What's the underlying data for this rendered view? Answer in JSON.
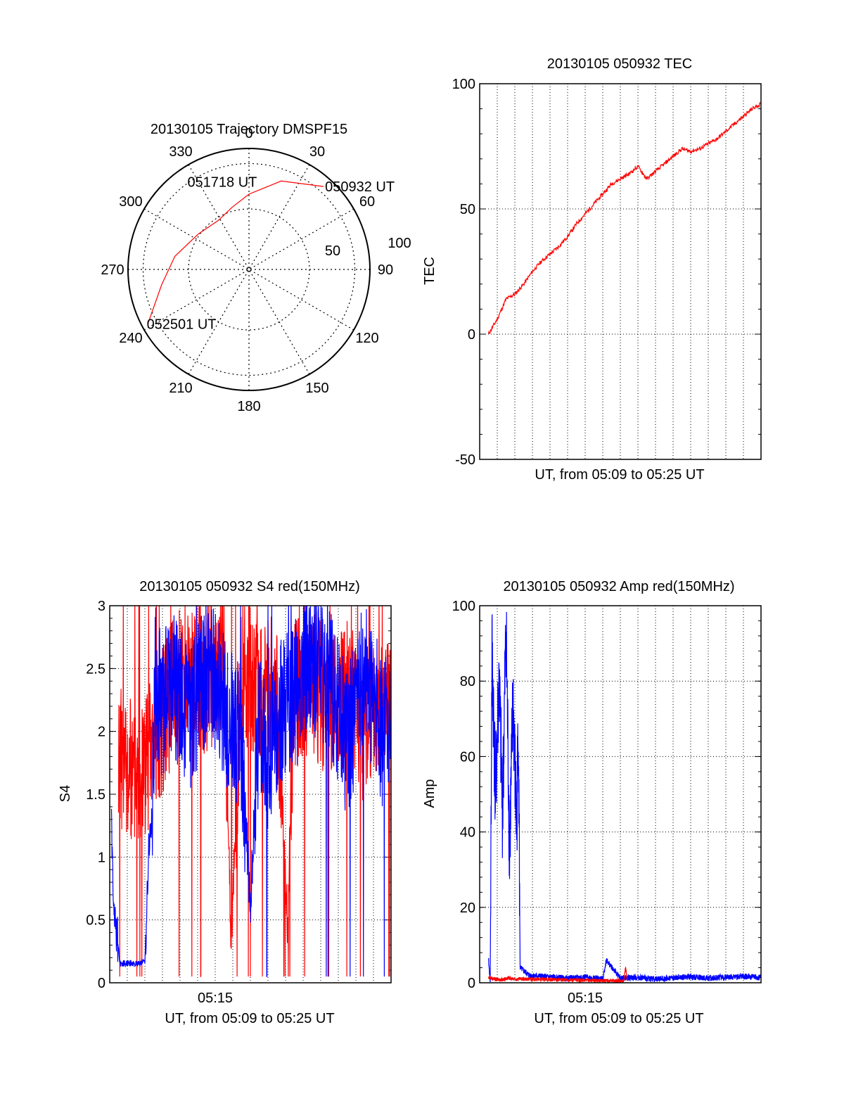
{
  "chart_data": [
    {
      "type": "polar",
      "title": "20130105 Trajectory DMSPF15",
      "azimuth_labels": [
        "0",
        "30",
        "60",
        "90",
        "120",
        "150",
        "180",
        "210",
        "240",
        "270",
        "300",
        "330"
      ],
      "radius_labels": [
        "50",
        "100"
      ],
      "grid": true,
      "trajectory": {
        "color": "#ff0000",
        "points": [
          {
            "az": 42,
            "el": 7,
            "label": "050932 UT"
          },
          {
            "az": 20,
            "el": 20
          },
          {
            "az": 0,
            "el": 34
          },
          {
            "az": -15,
            "el": 42
          },
          {
            "az": -32,
            "el": 47,
            "label": "051718 UT"
          },
          {
            "az": -55,
            "el": 44
          },
          {
            "az": -80,
            "el": 34
          },
          {
            "az": -100,
            "el": 24
          },
          {
            "az": -118,
            "el": 5,
            "label": "052501 UT"
          }
        ]
      }
    },
    {
      "type": "line",
      "title": "20130105 050932 TEC",
      "xlabel": "UT, from 05:09 to 05:25 UT",
      "ylabel": "TEC",
      "ylim": [
        -50,
        100
      ],
      "y_ticks": [
        "-50",
        "0",
        "50",
        "100"
      ],
      "grid": true,
      "series": [
        {
          "color": "#ff0000",
          "x": [
            0.5,
            1,
            1.5,
            2,
            2.5,
            3,
            3.5,
            4,
            4.5,
            5,
            5.5,
            6,
            6.5,
            7,
            7.5,
            8,
            8.5,
            9,
            9.5,
            10,
            10.5,
            11,
            11.5,
            12,
            12.5,
            13,
            13.5,
            14,
            14.5,
            15,
            15.5,
            16
          ],
          "values": [
            0,
            6,
            14,
            16,
            20,
            25,
            29,
            32,
            35,
            39,
            44,
            48,
            52,
            56,
            60,
            62,
            64,
            67,
            62,
            65,
            68,
            71,
            74,
            73,
            74,
            76,
            78,
            81,
            84,
            87,
            90,
            92
          ]
        }
      ]
    },
    {
      "type": "line",
      "title": "20130105 050932 S4 red(150MHz)",
      "xlabel": "UT, from 05:09 to 05:25 UT",
      "ylabel": "S4",
      "ylim": [
        0,
        3
      ],
      "y_ticks": [
        "0",
        "0.5",
        "1",
        "1.5",
        "2",
        "2.5",
        "3"
      ],
      "x_tick_labels": [
        "05:15"
      ],
      "grid": true,
      "series": [
        {
          "color": "#ff0000",
          "x": [
            0.5,
            1.5,
            2.5,
            3.5,
            4.5,
            5.5,
            6.5,
            6.9,
            7.5,
            8.5,
            9.5,
            10.1,
            10.5,
            11.5,
            12.5,
            13.5,
            14.5,
            15.5,
            16
          ],
          "values": [
            1.8,
            1.6,
            1.9,
            2.3,
            2.5,
            2.4,
            2.6,
            0.3,
            2.5,
            2.3,
            2.4,
            0.5,
            2.3,
            2.4,
            2.2,
            2.3,
            2.0,
            2.2,
            2.1
          ]
        },
        {
          "color": "#0000ff",
          "x": [
            0.1,
            0.2,
            0.6,
            1.0,
            1.5,
            2.0,
            2.2,
            2.4,
            2.6,
            3.0,
            3.5,
            4.5,
            5.5,
            6.5,
            7.5,
            8.0,
            8.5,
            9.0,
            9.5,
            10.5,
            11.5,
            12.5,
            13.5,
            14.5,
            15.5,
            16
          ],
          "values": [
            1.3,
            0.6,
            0.15,
            0.16,
            0.15,
            0.17,
            1.0,
            1.3,
            2.4,
            2.2,
            2.4,
            2.1,
            2.5,
            2.2,
            1.9,
            0.6,
            2.2,
            1.7,
            2.1,
            2.3,
            2.5,
            2.4,
            1.9,
            2.5,
            2.0,
            2.1
          ]
        }
      ]
    },
    {
      "type": "line",
      "title": "20130105 050932 Amp red(150MHz)",
      "xlabel": "UT, from 05:09 to 05:25 UT",
      "ylabel": "Amp",
      "ylim": [
        0,
        100
      ],
      "y_ticks": [
        "0",
        "20",
        "40",
        "60",
        "80",
        "100"
      ],
      "x_tick_labels": [
        "05:15"
      ],
      "grid": true,
      "series": [
        {
          "color": "#0000ff",
          "x": [
            0.5,
            0.6,
            0.7,
            0.9,
            1.1,
            1.3,
            1.5,
            1.7,
            1.9,
            2.1,
            2.2,
            2.3,
            2.8,
            4,
            5,
            6,
            7,
            7.2,
            8,
            9,
            10,
            11,
            12,
            13,
            14,
            15,
            16
          ],
          "values": [
            6,
            0.5,
            88,
            50,
            80,
            45,
            95,
            35,
            75,
            40,
            70,
            4,
            2,
            1.5,
            1.2,
            1.5,
            1.0,
            6,
            1.2,
            1.4,
            1.0,
            1.3,
            1.6,
            1.2,
            1.5,
            1.7,
            1.4
          ]
        },
        {
          "color": "#ff0000",
          "x": [
            0.5,
            0.8,
            1.2,
            1.6,
            2.0,
            2.2,
            8.2,
            8.3,
            8.4
          ],
          "values": [
            1.5,
            1.0,
            0.8,
            1.2,
            0.9,
            1.0,
            0.5,
            4,
            0.5
          ]
        }
      ]
    }
  ]
}
